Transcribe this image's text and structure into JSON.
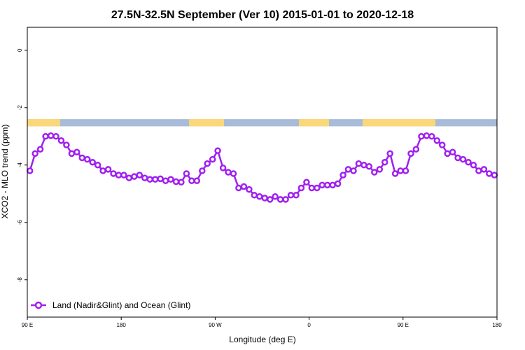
{
  "chart_data": {
    "type": "line",
    "title": "27.5N-32.5N September (Ver 10)   2015-01-01 to 2020-12-18",
    "xlabel": "Longitude (deg E)",
    "ylabel": "XCO2 - MLO trend (ppm)",
    "xlim": [
      90,
      540
    ],
    "ylim": [
      -9.3,
      0.8
    ],
    "x_ticks": [
      {
        "value": 90,
        "label": "90 E"
      },
      {
        "value": 180,
        "label": "180"
      },
      {
        "value": 270,
        "label": "90 W"
      },
      {
        "value": 360,
        "label": "0"
      },
      {
        "value": 450,
        "label": "90 E"
      },
      {
        "value": 540,
        "label": "180"
      }
    ],
    "y_ticks": [
      {
        "value": 0,
        "label": "0"
      },
      {
        "value": -2,
        "label": "-2"
      },
      {
        "value": -4,
        "label": "-4"
      },
      {
        "value": -6,
        "label": "-6"
      },
      {
        "value": -8,
        "label": "-8"
      }
    ],
    "grid": false,
    "legend_position": "bottom-left",
    "series": [
      {
        "name": "Land (Nadir&Glint) and Ocean (Glint)",
        "color": "#a020f0",
        "x": [
          92.5,
          97.5,
          102.5,
          107.5,
          112.5,
          117.5,
          122.5,
          127.5,
          132.5,
          137.5,
          142.5,
          147.5,
          152.5,
          157.5,
          162.5,
          167.5,
          172.5,
          177.5,
          182.5,
          187.5,
          192.5,
          197.5,
          202.5,
          207.5,
          212.5,
          217.5,
          222.5,
          227.5,
          232.5,
          237.5,
          242.5,
          247.5,
          252.5,
          257.5,
          262.5,
          267.5,
          272.5,
          277.5,
          282.5,
          287.5,
          292.5,
          297.5,
          302.5,
          307.5,
          312.5,
          317.5,
          322.5,
          327.5,
          332.5,
          337.5,
          342.5,
          347.5,
          352.5,
          357.5,
          362.5,
          367.5,
          372.5,
          377.5,
          382.5,
          387.5,
          392.5,
          397.5,
          402.5,
          407.5,
          412.5,
          417.5,
          422.5,
          427.5,
          432.5,
          437.5,
          442.5,
          447.5,
          452.5,
          457.5,
          462.5,
          467.5,
          472.5,
          477.5,
          482.5,
          487.5,
          492.5,
          497.5,
          502.5,
          507.5,
          512.5,
          517.5,
          522.5,
          527.5,
          532.5,
          537.5
        ],
        "values": [
          -4.2,
          -3.6,
          -3.45,
          -3.0,
          -2.98,
          -3.0,
          -3.15,
          -3.3,
          -3.6,
          -3.55,
          -3.75,
          -3.8,
          -3.9,
          -4.0,
          -4.2,
          -4.15,
          -4.3,
          -4.35,
          -4.35,
          -4.45,
          -4.4,
          -4.35,
          -4.45,
          -4.5,
          -4.5,
          -4.48,
          -4.55,
          -4.5,
          -4.58,
          -4.6,
          -4.3,
          -4.55,
          -4.55,
          -4.2,
          -3.95,
          -3.8,
          -3.5,
          -4.1,
          -4.25,
          -4.3,
          -4.8,
          -4.75,
          -4.85,
          -5.05,
          -5.1,
          -5.15,
          -5.2,
          -5.1,
          -5.2,
          -5.2,
          -5.05,
          -5.05,
          -4.8,
          -4.6,
          -4.8,
          -4.8,
          -4.7,
          -4.7,
          -4.7,
          -4.65,
          -4.35,
          -4.15,
          -4.2,
          -3.95,
          -4.0,
          -4.05,
          -4.25,
          -4.15,
          -3.9,
          -3.6,
          -4.3,
          -4.2,
          -4.2,
          -3.6,
          -3.45,
          -3.0,
          -2.98,
          -3.0,
          -3.15,
          -3.3,
          -3.6,
          -3.55,
          -3.75,
          -3.8,
          -3.9,
          -4.0,
          -4.2,
          -4.15,
          -4.3,
          -4.35
        ]
      }
    ],
    "surface_band": {
      "y_range": [
        -2.65,
        -2.4
      ],
      "ocean_color": "#a8bbd8",
      "land_color": "#fad87a"
    }
  }
}
